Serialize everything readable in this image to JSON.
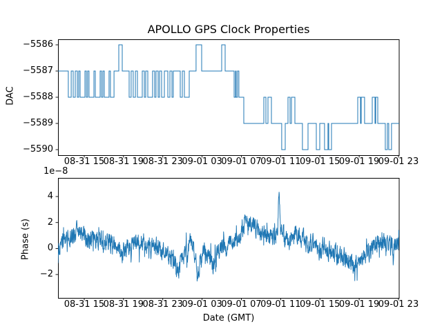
{
  "labels": {
    "title": "APOLLO GPS Clock Properties",
    "dac_ylabel": "DAC",
    "phase_ylabel": "Phase (s)",
    "xlabel": "Date (GMT)",
    "offset_text": "1e−8"
  },
  "style": {
    "line_color": "#1f77b4",
    "axis_color": "#000000",
    "background": "#ffffff"
  },
  "chart_data": [
    {
      "id": "dac",
      "type": "line",
      "title": "APOLLO GPS Clock Properties",
      "ylabel": "DAC",
      "x_unit": "hours since 08-31 12:00 GMT",
      "xlim": [
        0.33,
        35.07
      ],
      "ylim": [
        -5590.21,
        -5585.79
      ],
      "grid": false,
      "xticks": {
        "values": [
          3,
          7,
          11,
          15,
          19,
          23,
          27,
          31,
          35
        ],
        "labels": [
          "08-31 15",
          "08-31 19",
          "08-31 23",
          "09-01 03",
          "09-01 07",
          "09-01 11",
          "09-01 15",
          "09-01 19",
          "09-01 23"
        ]
      },
      "yticks": {
        "values": [
          -5586,
          -5587,
          -5588,
          -5589,
          -5590
        ],
        "labels": [
          "−5586",
          "−5587",
          "−5588",
          "−5589",
          "−5590"
        ]
      },
      "steps": [
        [
          0.33,
          -5587
        ],
        [
          1.38,
          -5588
        ],
        [
          1.67,
          -5587
        ],
        [
          1.88,
          -5588
        ],
        [
          2.09,
          -5587
        ],
        [
          2.3,
          -5588
        ],
        [
          2.44,
          -5587
        ],
        [
          2.58,
          -5588
        ],
        [
          3.07,
          -5587
        ],
        [
          3.21,
          -5588
        ],
        [
          3.35,
          -5587
        ],
        [
          3.49,
          -5588
        ],
        [
          3.99,
          -5587
        ],
        [
          4.13,
          -5588
        ],
        [
          4.62,
          -5587
        ],
        [
          4.76,
          -5588
        ],
        [
          4.9,
          -5587
        ],
        [
          5.04,
          -5588
        ],
        [
          5.53,
          -5587
        ],
        [
          5.67,
          -5588
        ],
        [
          6.03,
          -5587
        ],
        [
          6.52,
          -5586
        ],
        [
          6.87,
          -5587
        ],
        [
          7.57,
          -5588
        ],
        [
          7.78,
          -5587
        ],
        [
          7.99,
          -5588
        ],
        [
          8.21,
          -5587
        ],
        [
          8.42,
          -5588
        ],
        [
          8.91,
          -5587
        ],
        [
          9.12,
          -5588
        ],
        [
          9.26,
          -5587
        ],
        [
          9.47,
          -5588
        ],
        [
          9.96,
          -5587
        ],
        [
          10.17,
          -5588
        ],
        [
          10.31,
          -5587
        ],
        [
          10.53,
          -5588
        ],
        [
          10.67,
          -5587
        ],
        [
          10.88,
          -5588
        ],
        [
          11.16,
          -5587
        ],
        [
          11.51,
          -5588
        ],
        [
          11.72,
          -5587
        ],
        [
          11.93,
          -5588
        ],
        [
          12.07,
          -5587
        ],
        [
          12.78,
          -5588
        ],
        [
          12.99,
          -5587
        ],
        [
          13.2,
          -5588
        ],
        [
          13.69,
          -5587
        ],
        [
          14.39,
          -5586
        ],
        [
          14.96,
          -5587
        ],
        [
          17.0,
          -5586
        ],
        [
          17.35,
          -5587
        ],
        [
          18.26,
          -5588
        ],
        [
          18.4,
          -5587
        ],
        [
          18.47,
          -5588
        ],
        [
          18.61,
          -5587
        ],
        [
          18.75,
          -5588
        ],
        [
          19.25,
          -5589
        ],
        [
          21.29,
          -5588
        ],
        [
          21.5,
          -5589
        ],
        [
          21.71,
          -5588
        ],
        [
          22.06,
          -5589
        ],
        [
          23.11,
          -5590
        ],
        [
          23.47,
          -5589
        ],
        [
          23.75,
          -5588
        ],
        [
          23.96,
          -5589
        ],
        [
          24.1,
          -5588
        ],
        [
          24.45,
          -5589
        ],
        [
          25.22,
          -5590
        ],
        [
          25.79,
          -5589
        ],
        [
          26.63,
          -5590
        ],
        [
          26.98,
          -5589
        ],
        [
          27.47,
          -5590
        ],
        [
          27.82,
          -5589
        ],
        [
          27.9,
          -5590
        ],
        [
          28.18,
          -5589
        ],
        [
          30.85,
          -5588
        ],
        [
          31.13,
          -5589
        ],
        [
          31.2,
          -5588
        ],
        [
          31.55,
          -5589
        ],
        [
          32.33,
          -5588
        ],
        [
          32.61,
          -5589
        ],
        [
          32.68,
          -5588
        ],
        [
          32.89,
          -5589
        ],
        [
          33.66,
          -5590
        ],
        [
          33.87,
          -5589
        ],
        [
          34.01,
          -5590
        ],
        [
          34.29,
          -5589
        ]
      ]
    },
    {
      "id": "phase",
      "type": "line",
      "ylabel": "Phase (s)",
      "xlabel": "Date (GMT)",
      "offset_text": "1e−8",
      "y_scale": 1e-08,
      "x_unit": "hours since 08-31 12:00 GMT",
      "xlim": [
        0.33,
        35.07
      ],
      "ylim": [
        -3.8,
        5.43
      ],
      "grid": false,
      "xticks": {
        "values": [
          3,
          7,
          11,
          15,
          19,
          23,
          27,
          31,
          35
        ],
        "labels": [
          "08-31 15",
          "08-31 19",
          "08-31 23",
          "09-01 03",
          "09-01 07",
          "09-01 11",
          "09-01 15",
          "09-01 19",
          "09-01 23"
        ]
      },
      "yticks": {
        "values": [
          4,
          2,
          0,
          -2
        ],
        "labels": [
          "4",
          "2",
          "0",
          "−2"
        ]
      },
      "envelope": [
        [
          0.33,
          -0.6
        ],
        [
          0.68,
          0.3
        ],
        [
          1.2,
          0.8
        ],
        [
          1.89,
          1.1
        ],
        [
          2.41,
          1.3
        ],
        [
          2.94,
          1.0
        ],
        [
          3.46,
          0.9
        ],
        [
          3.98,
          0.7
        ],
        [
          4.67,
          0.6
        ],
        [
          5.37,
          0.3
        ],
        [
          6.06,
          0.2
        ],
        [
          6.76,
          -0.3
        ],
        [
          7.45,
          0.1
        ],
        [
          8.15,
          0.4
        ],
        [
          8.84,
          0.5
        ],
        [
          9.54,
          0.3
        ],
        [
          10.23,
          0.1
        ],
        [
          10.93,
          -0.2
        ],
        [
          11.62,
          -0.6
        ],
        [
          12.14,
          -1.1
        ],
        [
          12.56,
          -1.6
        ],
        [
          13.01,
          -0.7
        ],
        [
          13.53,
          0.2
        ],
        [
          14.05,
          0.5
        ],
        [
          14.4,
          -0.8
        ],
        [
          14.5,
          -2.5
        ],
        [
          14.75,
          -1.2
        ],
        [
          15.27,
          -0.3
        ],
        [
          15.96,
          -0.6
        ],
        [
          16.07,
          -1.8
        ],
        [
          16.49,
          -0.4
        ],
        [
          17.01,
          0.3
        ],
        [
          17.52,
          0.2
        ],
        [
          18.22,
          0.6
        ],
        [
          18.92,
          1.2
        ],
        [
          19.44,
          1.8
        ],
        [
          19.78,
          2.2
        ],
        [
          20.31,
          1.9
        ],
        [
          20.83,
          1.4
        ],
        [
          21.35,
          1.1
        ],
        [
          21.87,
          0.9
        ],
        [
          22.7,
          1.2
        ],
        [
          22.84,
          4.9
        ],
        [
          22.98,
          1.5
        ],
        [
          23.43,
          0.9
        ],
        [
          23.95,
          0.6
        ],
        [
          24.65,
          1.0
        ],
        [
          25.17,
          0.8
        ],
        [
          25.69,
          0.3
        ],
        [
          26.39,
          0.4
        ],
        [
          26.91,
          -0.2
        ],
        [
          27.43,
          0.1
        ],
        [
          28.12,
          -0.3
        ],
        [
          28.82,
          -0.5
        ],
        [
          29.51,
          -0.7
        ],
        [
          30.03,
          -1.0
        ],
        [
          30.55,
          -1.3
        ],
        [
          31.07,
          -0.9
        ],
        [
          31.6,
          -0.6
        ],
        [
          32.12,
          -0.2
        ],
        [
          32.64,
          0.2
        ],
        [
          33.16,
          0.5
        ],
        [
          33.68,
          0.3
        ],
        [
          34.2,
          0.1
        ],
        [
          34.72,
          0.4
        ],
        [
          35.07,
          0.6
        ]
      ],
      "noise": {
        "seed": 987654321,
        "ar": 0.45,
        "amp": 0.6,
        "spike_chance": 0.06,
        "spike_gain": 2.2,
        "points": 1600,
        "clamp": [
          -3.6,
          5.25
        ]
      }
    }
  ]
}
